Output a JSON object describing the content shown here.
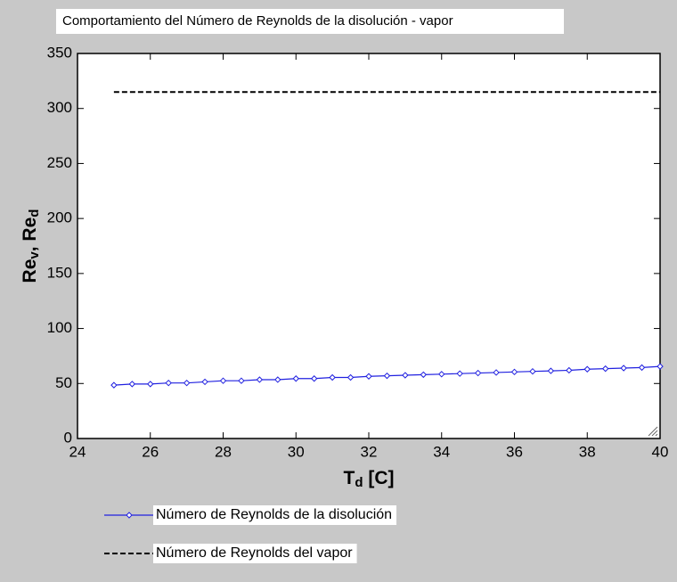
{
  "chart_data": {
    "type": "line",
    "title": "Comportamiento del Número de Reynolds  de la disolución - vapor",
    "ylabel_parts": [
      "Re",
      "v",
      ",  Re",
      "d"
    ],
    "xlabel_parts": [
      "T",
      "d",
      "  [C]"
    ],
    "x": [
      25,
      25.5,
      26,
      26.5,
      27,
      27.5,
      28,
      28.5,
      29,
      29.5,
      30,
      30.5,
      31,
      31.5,
      32,
      32.5,
      33,
      33.5,
      34,
      34.5,
      35,
      35.5,
      36,
      36.5,
      37,
      37.5,
      38,
      38.5,
      39,
      39.5,
      40
    ],
    "series": [
      {
        "name": "Número de Reynolds de la disolución",
        "color": "#2020e0",
        "style": "solid-diamond",
        "values": [
          48.5,
          49.5,
          49.5,
          50.5,
          50.5,
          51.5,
          52.5,
          52.5,
          53.5,
          53.5,
          54.5,
          54.5,
          55.5,
          55.5,
          56.5,
          57,
          57.5,
          58,
          58.5,
          59,
          59.5,
          60,
          60.5,
          61,
          61.5,
          62,
          63,
          63.5,
          64,
          64.5,
          65.5
        ]
      },
      {
        "name": "Número de Reynolds del vapor",
        "color": "#000000",
        "style": "dashed",
        "values": [
          315,
          315,
          315,
          315,
          315,
          315,
          315,
          315,
          315,
          315,
          315,
          315,
          315,
          315,
          315,
          315,
          315,
          315,
          315,
          315,
          315,
          315,
          315,
          315,
          315,
          315,
          315,
          315,
          315,
          315,
          315
        ]
      }
    ],
    "xlim": [
      24,
      40
    ],
    "xticks": [
      24,
      26,
      28,
      30,
      32,
      34,
      36,
      38,
      40
    ],
    "ylim": [
      0,
      350
    ],
    "yticks": [
      0,
      50,
      100,
      150,
      200,
      250,
      300,
      350
    ],
    "grid": false
  }
}
